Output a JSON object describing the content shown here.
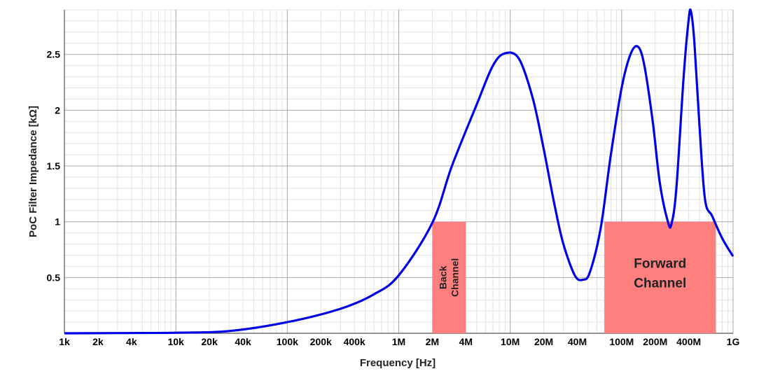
{
  "chart_data": {
    "type": "line",
    "title": "",
    "xlabel": "Frequency [Hz]",
    "ylabel": "PoC Filter Impedance [kΩ]",
    "x_scale": "log",
    "xlim": [
      1000,
      1000000000
    ],
    "ylim": [
      0,
      2.9
    ],
    "grid": true,
    "x_ticks": [
      {
        "value": 1000,
        "label": "1k"
      },
      {
        "value": 2000,
        "label": "2k"
      },
      {
        "value": 4000,
        "label": "4k"
      },
      {
        "value": 10000,
        "label": "10k"
      },
      {
        "value": 20000,
        "label": "20k"
      },
      {
        "value": 40000,
        "label": "40k"
      },
      {
        "value": 100000,
        "label": "100k"
      },
      {
        "value": 200000,
        "label": "200k"
      },
      {
        "value": 400000,
        "label": "400k"
      },
      {
        "value": 1000000,
        "label": "1M"
      },
      {
        "value": 2000000,
        "label": "2M"
      },
      {
        "value": 4000000,
        "label": "4M"
      },
      {
        "value": 10000000,
        "label": "10M"
      },
      {
        "value": 20000000,
        "label": "20M"
      },
      {
        "value": 40000000,
        "label": "40M"
      },
      {
        "value": 100000000,
        "label": "100M"
      },
      {
        "value": 200000000,
        "label": "200M"
      },
      {
        "value": 400000000,
        "label": "400M"
      },
      {
        "value": 1000000000,
        "label": "1G"
      }
    ],
    "y_ticks": [
      {
        "value": 0.5,
        "label": "0.5"
      },
      {
        "value": 1,
        "label": "1"
      },
      {
        "value": 1.5,
        "label": "1.5"
      },
      {
        "value": 2,
        "label": "2"
      },
      {
        "value": 2.5,
        "label": "2.5"
      }
    ],
    "series": [
      {
        "color": "#0000e6",
        "points": [
          [
            1000,
            0.0
          ],
          [
            3000,
            0.002
          ],
          [
            10000,
            0.005
          ],
          [
            30000,
            0.02
          ],
          [
            100000,
            0.1
          ],
          [
            300000,
            0.22
          ],
          [
            600000,
            0.35
          ],
          [
            1000000,
            0.52
          ],
          [
            2000000,
            0.99
          ],
          [
            3000000,
            1.5
          ],
          [
            5000000,
            2.05
          ],
          [
            7000000,
            2.4
          ],
          [
            9000000,
            2.51
          ],
          [
            12000000,
            2.46
          ],
          [
            16000000,
            2.1
          ],
          [
            20000000,
            1.65
          ],
          [
            25000000,
            1.15
          ],
          [
            30000000,
            0.8
          ],
          [
            38000000,
            0.52
          ],
          [
            45000000,
            0.48
          ],
          [
            52000000,
            0.55
          ],
          [
            65000000,
            0.95
          ],
          [
            80000000,
            1.6
          ],
          [
            100000000,
            2.2
          ],
          [
            120000000,
            2.5
          ],
          [
            140000000,
            2.57
          ],
          [
            160000000,
            2.4
          ],
          [
            190000000,
            1.9
          ],
          [
            220000000,
            1.35
          ],
          [
            260000000,
            1.0
          ],
          [
            280000000,
            0.98
          ],
          [
            310000000,
            1.3
          ],
          [
            360000000,
            2.3
          ],
          [
            400000000,
            2.82
          ],
          [
            420000000,
            2.88
          ],
          [
            450000000,
            2.6
          ],
          [
            500000000,
            1.85
          ],
          [
            560000000,
            1.2
          ],
          [
            650000000,
            1.05
          ],
          [
            800000000,
            0.85
          ],
          [
            1000000000,
            0.69
          ]
        ]
      }
    ],
    "bands": [
      {
        "label_lines": [
          "Back",
          "Channel"
        ],
        "x": [
          2000000,
          4000000
        ],
        "y": [
          0,
          1
        ],
        "color": "#ff7f7f",
        "vertical_text": true
      },
      {
        "label_lines": [
          "Forward",
          "Channel"
        ],
        "x": [
          70000000,
          700000000
        ],
        "y": [
          0,
          1
        ],
        "color": "#ff7f7f",
        "vertical_text": false
      }
    ]
  }
}
